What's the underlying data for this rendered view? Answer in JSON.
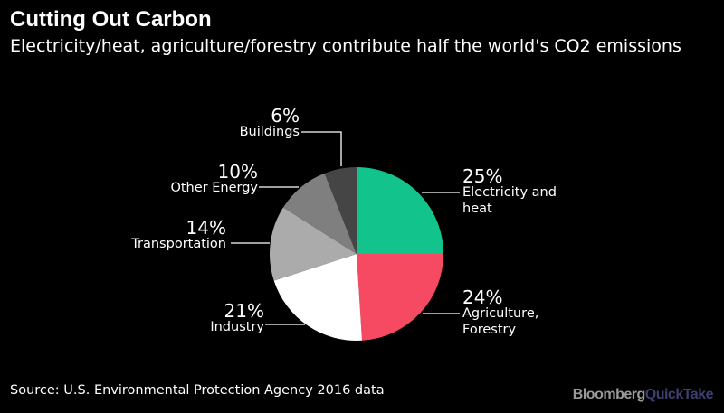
{
  "title": "Cutting Out Carbon",
  "subtitle": "Electricity/heat, agriculture/forestry contribute half the world's CO2 emissions",
  "source": "Source: U.S. Environmental Protection Agency 2016 data",
  "logo": {
    "brand": "Bloomberg",
    "product": "QuickTake"
  },
  "chart_data": {
    "type": "pie",
    "start": "top, clockwise",
    "slices": [
      {
        "label": "Electricity and heat",
        "label_lines": [
          "Electricity and",
          "heat"
        ],
        "value": 25,
        "value_label": "25%",
        "color": "#12c48b"
      },
      {
        "label": "Agriculture, Forestry",
        "label_lines": [
          "Agriculture,",
          "Forestry"
        ],
        "value": 24,
        "value_label": "24%",
        "color": "#f64a62"
      },
      {
        "label": "Industry",
        "label_lines": [
          "Industry"
        ],
        "value": 21,
        "value_label": "21%",
        "color": "#ffffff"
      },
      {
        "label": "Transportation",
        "label_lines": [
          "Transportation"
        ],
        "value": 14,
        "value_label": "14%",
        "color": "#ababab"
      },
      {
        "label": "Other Energy",
        "label_lines": [
          "Other Energy"
        ],
        "value": 10,
        "value_label": "10%",
        "color": "#7f7f7f"
      },
      {
        "label": "Buildings",
        "label_lines": [
          "Buildings"
        ],
        "value": 6,
        "value_label": "6%",
        "color": "#454545"
      }
    ]
  }
}
